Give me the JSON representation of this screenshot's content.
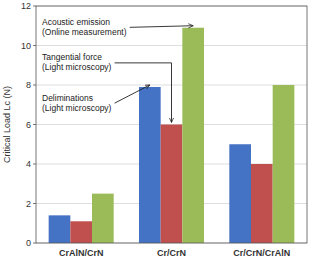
{
  "chart_data": {
    "type": "bar",
    "categories": [
      "CrAlN/CrN",
      "Cr/CrN",
      "Cr/CrN/CrAlN"
    ],
    "series": [
      {
        "name": "Deliminations\n(Light microscopy)",
        "color": "#4472C4",
        "values": [
          1.4,
          7.9,
          5.0
        ]
      },
      {
        "name": "Tangential force\n(Light microscopy)",
        "color": "#C0504D",
        "values": [
          1.1,
          6.0,
          4.0
        ]
      },
      {
        "name": "Acoustic emission\n(Online measurement)",
        "color": "#9BBB59",
        "values": [
          2.5,
          10.9,
          8.0
        ]
      }
    ],
    "ylabel": "Critical Load Lc (N)",
    "ylim": [
      0,
      12
    ],
    "yticks": [
      0,
      2,
      4,
      6,
      8,
      10,
      12
    ],
    "grid": true
  }
}
